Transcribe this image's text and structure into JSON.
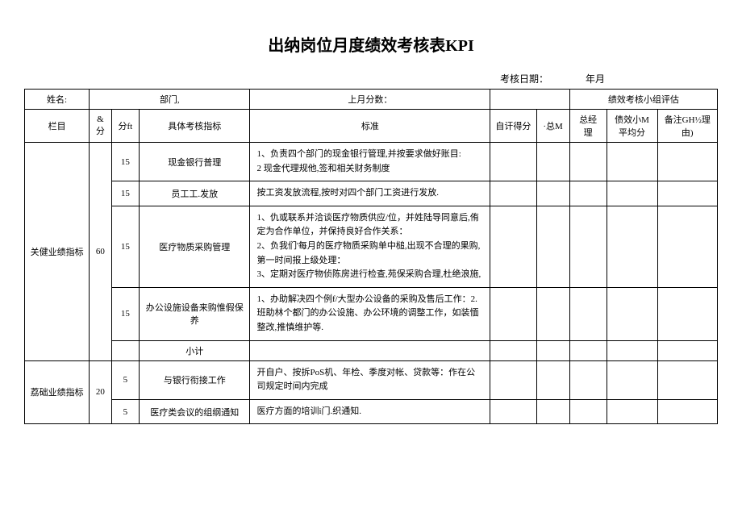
{
  "title": "出纳岗位月度绩效考核表KPI",
  "dateLabel": "考核日期：",
  "dateSuffix": "年月",
  "header": {
    "nameLabel": "姓名:",
    "deptLabel": "部门,",
    "lastScoreLabel": "上月分数：",
    "evalGroupLabel": "绩效考核小组评估"
  },
  "columns": {
    "item": "栏目",
    "weight": "&分",
    "score": "分ft",
    "kpi": "具体考核指标",
    "standard": "标准",
    "selfScore": "自讦得分",
    "total": "·总M",
    "manager": "总经理",
    "avg": "债效小M平均分",
    "remark": "备注GH½理由)"
  },
  "sections": [
    {
      "name": "关健业绩指标",
      "weight": "60",
      "rows": [
        {
          "score": "15",
          "kpi": "现金银行普理",
          "standard": "1、负责四个部门的现金银行管理,并按要求做好账目:\n2 现金代理规他,签和相关财务制度"
        },
        {
          "score": "15",
          "kpi": "员工工.发放",
          "standard": "按工资发放流程,按时对四个部门工资进行发放."
        },
        {
          "score": "15",
          "kpi": "医疗物质采购管理",
          "standard": "1、仇或联系并洽谈医疗物质供应/位，并姓陆导同意后,侑定为合作单位，并保持良好合作关系：\n2、负我们'每月的医疗物质采购单中槌,出现不合理的果购,第一时间报上级处理：\n3、定期对医疗物侦陈房进行检查,苑保采购合理,杜绝浪施,"
        },
        {
          "score": "15",
          "kpi": "办公设施设备来购惟假保养",
          "standard": "1、办助解决四个例f/大型办公设备的采购及售后工作：2.班助林个都门的办公设施、办公环境的调整工作，如装愐整改,推慎维护等."
        },
        {
          "score": "",
          "kpi": "小计",
          "standard": ""
        }
      ]
    },
    {
      "name": "荔础业绩指标",
      "weight": "20",
      "rows": [
        {
          "score": "5",
          "kpi": "与银行衔接工作",
          "standard": "开自户、按拆PoS机、年检、季度对帐、贷款等：作在公司规定时间内完成"
        },
        {
          "score": "5",
          "kpi": "医疗类会议的组纲通知",
          "standard": "医疗方面的培训i门.织通知."
        }
      ]
    }
  ]
}
